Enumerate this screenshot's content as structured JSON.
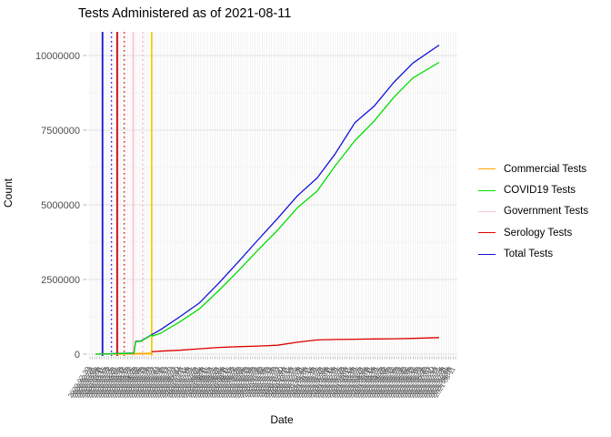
{
  "title": "Tests Administered as of 2021-08-11",
  "y_axis": {
    "label": "Count",
    "tick_labels": [
      "0",
      "2500000",
      "5000000",
      "7500000",
      "10000000"
    ],
    "tick_values": [
      0,
      2500000,
      5000000,
      7500000,
      10000000
    ],
    "minor_tick_values": [
      1250000,
      3750000,
      6250000,
      8750000
    ],
    "tick_color": "#4d4d4d"
  },
  "x_axis": {
    "label": "Date",
    "start": "2020-02-20",
    "end": "2021-08-11",
    "n_ticks": 156,
    "note": "daily date tick labels, rotated and heavily overlapping (illegible band)"
  },
  "legend": {
    "items": [
      {
        "label": "Commercial Tests",
        "color": "#FFA500"
      },
      {
        "label": "COVID19 Tests",
        "color": "#00DD00"
      },
      {
        "label": "Government Tests",
        "color": "#FFC5CF"
      },
      {
        "label": "Serology Tests",
        "color": "#DD0000"
      },
      {
        "label": "Total Tests",
        "color": "#1212D9"
      }
    ]
  },
  "chart_data": {
    "type": "line",
    "title": "Tests Administered as of 2021-08-11",
    "xlabel": "Date",
    "ylabel": "Count",
    "x_range": [
      "2020-02-20",
      "2021-08-11"
    ],
    "y_range": [
      0,
      10400000
    ],
    "y_ticks": [
      0,
      2500000,
      5000000,
      7500000,
      10000000
    ],
    "grid": "light gray horizontal major/minor lines plus one vertical gridline per date",
    "legend_position": "right",
    "series": [
      {
        "name": "Government Tests",
        "color": "#FFC5CF",
        "width": 1.8,
        "points": [
          [
            "2020-02-25",
            3000
          ],
          [
            "2020-04-25",
            12000
          ]
        ]
      },
      {
        "name": "Commercial Tests",
        "color": "#FFA500",
        "width": 1.8,
        "points": [
          [
            "2020-03-20",
            6000
          ],
          [
            "2020-05-18",
            20000
          ]
        ]
      },
      {
        "name": "Total Tests",
        "color": "#1212D9",
        "width": 1.3,
        "points": [
          [
            "2020-02-20",
            0
          ],
          [
            "2020-03-01",
            4000
          ],
          [
            "2020-04-01",
            26000
          ],
          [
            "2020-04-20",
            37000
          ],
          [
            "2020-04-23",
            430000
          ],
          [
            "2020-05-01",
            440000
          ],
          [
            "2020-05-18",
            650000
          ],
          [
            "2020-06-01",
            820000
          ],
          [
            "2020-07-01",
            1250000
          ],
          [
            "2020-08-01",
            1720000
          ],
          [
            "2020-09-01",
            2400000
          ],
          [
            "2020-10-01",
            3100000
          ],
          [
            "2020-11-01",
            3840000
          ],
          [
            "2020-12-01",
            4540000
          ],
          [
            "2021-01-01",
            5300000
          ],
          [
            "2021-02-01",
            5900000
          ],
          [
            "2021-03-01",
            6700000
          ],
          [
            "2021-04-01",
            7750000
          ],
          [
            "2021-05-01",
            8300000
          ],
          [
            "2021-06-01",
            9100000
          ],
          [
            "2021-07-01",
            9750000
          ],
          [
            "2021-08-11",
            10350000
          ]
        ]
      },
      {
        "name": "COVID19 Tests",
        "color": "#00DD00",
        "width": 1.3,
        "points": [
          [
            "2020-02-20",
            0
          ],
          [
            "2020-03-01",
            3000
          ],
          [
            "2020-04-01",
            22000
          ],
          [
            "2020-04-20",
            32000
          ],
          [
            "2020-04-23",
            420000
          ],
          [
            "2020-05-01",
            430000
          ],
          [
            "2020-05-17",
            630000
          ],
          [
            "2020-05-20",
            610000
          ],
          [
            "2020-06-01",
            700000
          ],
          [
            "2020-07-01",
            1080000
          ],
          [
            "2020-08-01",
            1520000
          ],
          [
            "2020-09-01",
            2150000
          ],
          [
            "2020-10-01",
            2800000
          ],
          [
            "2020-11-01",
            3500000
          ],
          [
            "2020-12-01",
            4150000
          ],
          [
            "2021-01-01",
            4900000
          ],
          [
            "2021-02-01",
            5460000
          ],
          [
            "2021-03-01",
            6300000
          ],
          [
            "2021-04-01",
            7150000
          ],
          [
            "2021-05-01",
            7800000
          ],
          [
            "2021-06-01",
            8600000
          ],
          [
            "2021-07-01",
            9250000
          ],
          [
            "2021-08-11",
            9770000
          ]
        ]
      },
      {
        "name": "Serology Tests",
        "color": "#DD0000",
        "width": 1.3,
        "points": [
          [
            "2020-05-18",
            80000
          ],
          [
            "2020-06-01",
            100000
          ],
          [
            "2020-07-01",
            130000
          ],
          [
            "2020-08-01",
            180000
          ],
          [
            "2020-09-01",
            225000
          ],
          [
            "2020-10-01",
            250000
          ],
          [
            "2020-11-01",
            272000
          ],
          [
            "2020-12-01",
            300000
          ],
          [
            "2021-01-01",
            400000
          ],
          [
            "2021-02-01",
            475000
          ],
          [
            "2021-03-01",
            490000
          ],
          [
            "2021-04-01",
            500000
          ],
          [
            "2021-05-01",
            508000
          ],
          [
            "2021-06-01",
            516000
          ],
          [
            "2021-07-01",
            526000
          ],
          [
            "2021-08-11",
            556000
          ]
        ]
      }
    ],
    "vlines": [
      {
        "color": "#1212D9",
        "style": "solid",
        "date": "2020-03-02"
      },
      {
        "color": "#2A2AE0",
        "style": "dotted",
        "date": "2020-03-16"
      },
      {
        "color": "#DD0000",
        "style": "solid",
        "date": "2020-03-25"
      },
      {
        "color": "#E03030",
        "style": "dotted",
        "date": "2020-04-05"
      },
      {
        "color": "#FFC5CF",
        "style": "solid",
        "date": "2020-04-19"
      },
      {
        "color": "#FFB6C1",
        "style": "dotted",
        "date": "2020-05-04"
      },
      {
        "color": "#F2CB05",
        "style": "solid",
        "date": "2020-05-18"
      }
    ]
  }
}
